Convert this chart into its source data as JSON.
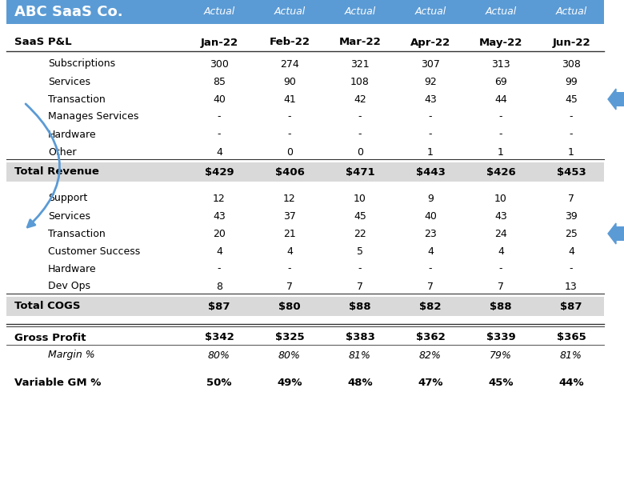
{
  "header_bg": "#5B9BD5",
  "header_text_color": "#FFFFFF",
  "total_row_bg": "#D9D9D9",
  "company": "ABC SaaS Co.",
  "col_type": "Actual",
  "columns": [
    "Jan-22",
    "Feb-22",
    "Mar-22",
    "Apr-22",
    "May-22",
    "Jun-22"
  ],
  "section1_label": "SaaS P&L",
  "revenue_rows": [
    {
      "label": "Subscriptions",
      "values": [
        "300",
        "274",
        "321",
        "307",
        "313",
        "308"
      ],
      "arrow": false
    },
    {
      "label": "Services",
      "values": [
        "85",
        "90",
        "108",
        "92",
        "69",
        "99"
      ],
      "arrow": false
    },
    {
      "label": "Transaction",
      "values": [
        "40",
        "41",
        "42",
        "43",
        "44",
        "45"
      ],
      "arrow": true
    },
    {
      "label": "Manages Services",
      "values": [
        "-",
        "-",
        "-",
        "-",
        "-",
        "-"
      ],
      "arrow": false
    },
    {
      "label": "Hardware",
      "values": [
        "-",
        "-",
        "-",
        "-",
        "-",
        "-"
      ],
      "arrow": false
    },
    {
      "label": "Other",
      "values": [
        "4",
        "0",
        "0",
        "1",
        "1",
        "1"
      ],
      "arrow": false
    }
  ],
  "total_revenue": {
    "label": "Total Revenue",
    "values": [
      "$429",
      "$406",
      "$471",
      "$443",
      "$426",
      "$453"
    ]
  },
  "cogs_rows": [
    {
      "label": "Support",
      "values": [
        "12",
        "12",
        "10",
        "9",
        "10",
        "7"
      ],
      "arrow": false
    },
    {
      "label": "Services",
      "values": [
        "43",
        "37",
        "45",
        "40",
        "43",
        "39"
      ],
      "arrow": false
    },
    {
      "label": "Transaction",
      "values": [
        "20",
        "21",
        "22",
        "23",
        "24",
        "25"
      ],
      "arrow": true
    },
    {
      "label": "Customer Success",
      "values": [
        "4",
        "4",
        "5",
        "4",
        "4",
        "4"
      ],
      "arrow": false
    },
    {
      "label": "Hardware",
      "values": [
        "-",
        "-",
        "-",
        "-",
        "-",
        "-"
      ],
      "arrow": false
    },
    {
      "label": "Dev Ops",
      "values": [
        "8",
        "7",
        "7",
        "7",
        "7",
        "13"
      ],
      "arrow": false
    }
  ],
  "total_cogs": {
    "label": "Total COGS",
    "values": [
      "$87",
      "$80",
      "$88",
      "$82",
      "$88",
      "$87"
    ]
  },
  "gross_profit": {
    "label": "Gross Profit",
    "values": [
      "$342",
      "$325",
      "$383",
      "$362",
      "$339",
      "$365"
    ]
  },
  "margin_pct": {
    "label": "Margin %",
    "values": [
      "80%",
      "80%",
      "81%",
      "82%",
      "79%",
      "81%"
    ]
  },
  "variable_gm": {
    "label": "Variable GM %",
    "values": [
      "50%",
      "49%",
      "48%",
      "47%",
      "45%",
      "44%"
    ]
  },
  "arrow_color": "#5B9BD5",
  "line_color": "#555555"
}
